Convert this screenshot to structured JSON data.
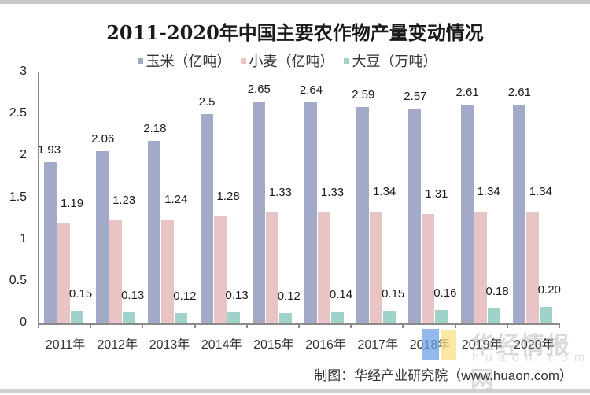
{
  "chart_data": {
    "type": "bar",
    "title": "2011-2020年中国主要农作物产量变动情况",
    "xlabel": "",
    "ylabel": "",
    "ylim": [
      0,
      3
    ],
    "yticks": [
      "0",
      "0.5",
      "1",
      "1.5",
      "2",
      "2.5",
      "3"
    ],
    "grid": false,
    "legend_position": "top",
    "categories": [
      "2011年",
      "2012年",
      "2013年",
      "2014年",
      "2015年",
      "2016年",
      "2017年",
      "2018年",
      "2019年",
      "2020年"
    ],
    "series": [
      {
        "name": "玉米（亿吨）",
        "color": "#a3a9c8",
        "values": [
          1.93,
          2.06,
          2.18,
          2.5,
          2.65,
          2.64,
          2.59,
          2.57,
          2.61,
          2.61
        ],
        "labels": [
          "1.93",
          "2.06",
          "2.18",
          "2.5",
          "2.65",
          "2.64",
          "2.59",
          "2.57",
          "2.61",
          "2.61"
        ]
      },
      {
        "name": "小麦（亿吨）",
        "color": "#e9c4c4",
        "values": [
          1.19,
          1.23,
          1.24,
          1.28,
          1.33,
          1.33,
          1.34,
          1.31,
          1.34,
          1.34
        ],
        "labels": [
          "1.19",
          "1.23",
          "1.24",
          "1.28",
          "1.33",
          "1.33",
          "1.34",
          "1.31",
          "1.34",
          "1.34"
        ]
      },
      {
        "name": "大豆（万吨）",
        "color": "#9fd2c8",
        "values": [
          0.15,
          0.13,
          0.12,
          0.13,
          0.12,
          0.14,
          0.15,
          0.16,
          0.18,
          0.2
        ],
        "labels": [
          "0.15",
          "0.13",
          "0.12",
          "0.13",
          "0.12",
          "0.14",
          "0.15",
          "0.16",
          "0.18",
          "0.20"
        ]
      }
    ],
    "source": "制图：华经产业研究院（www.huaon.com）"
  },
  "watermark": {
    "text": "华经情报网",
    "subtext": "huaon.com"
  }
}
